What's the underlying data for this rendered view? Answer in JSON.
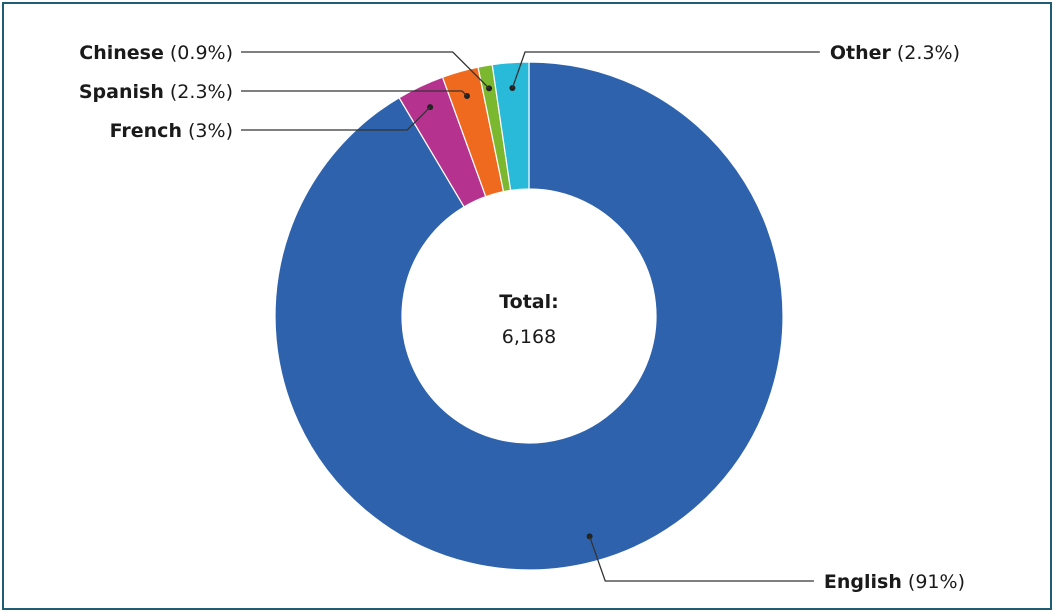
{
  "chart_data": {
    "type": "pie",
    "variant": "donut",
    "center_label": "Total:",
    "center_value": "6,168",
    "slices": [
      {
        "name": "English",
        "pct_label": "(91%)",
        "value": 91.0,
        "color": "#2e62ad"
      },
      {
        "name": "French",
        "pct_label": "(3%)",
        "value": 3.0,
        "color": "#b5338f"
      },
      {
        "name": "Spanish",
        "pct_label": "(2.3%)",
        "value": 2.3,
        "color": "#ef6a1e"
      },
      {
        "name": "Chinese",
        "pct_label": "(0.9%)",
        "value": 0.9,
        "color": "#7cb82f"
      },
      {
        "name": "Other",
        "pct_label": "(2.3%)",
        "value": 2.3,
        "color": "#29b9d9"
      }
    ]
  }
}
